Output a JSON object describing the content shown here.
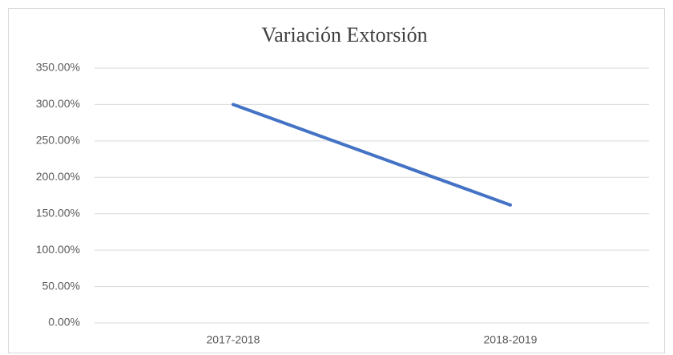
{
  "chart_data": {
    "type": "line",
    "title": "Variación  Extorsión",
    "categories": [
      "2017-2018",
      "2018-2019"
    ],
    "series": [
      {
        "name": "Variación Extorsión",
        "color": "#4472c4",
        "values": [
          300,
          162
        ]
      }
    ],
    "ylim": [
      0,
      350
    ],
    "yticks": [
      {
        "value": 0,
        "label": "0.00%"
      },
      {
        "value": 50,
        "label": "50.00%"
      },
      {
        "value": 100,
        "label": "100.00%"
      },
      {
        "value": 150,
        "label": "150.00%"
      },
      {
        "value": 200,
        "label": "200.00%"
      },
      {
        "value": 250,
        "label": "250.00%"
      },
      {
        "value": 300,
        "label": "300.00%"
      },
      {
        "value": 350,
        "label": "350.00%"
      }
    ],
    "grid": true
  }
}
